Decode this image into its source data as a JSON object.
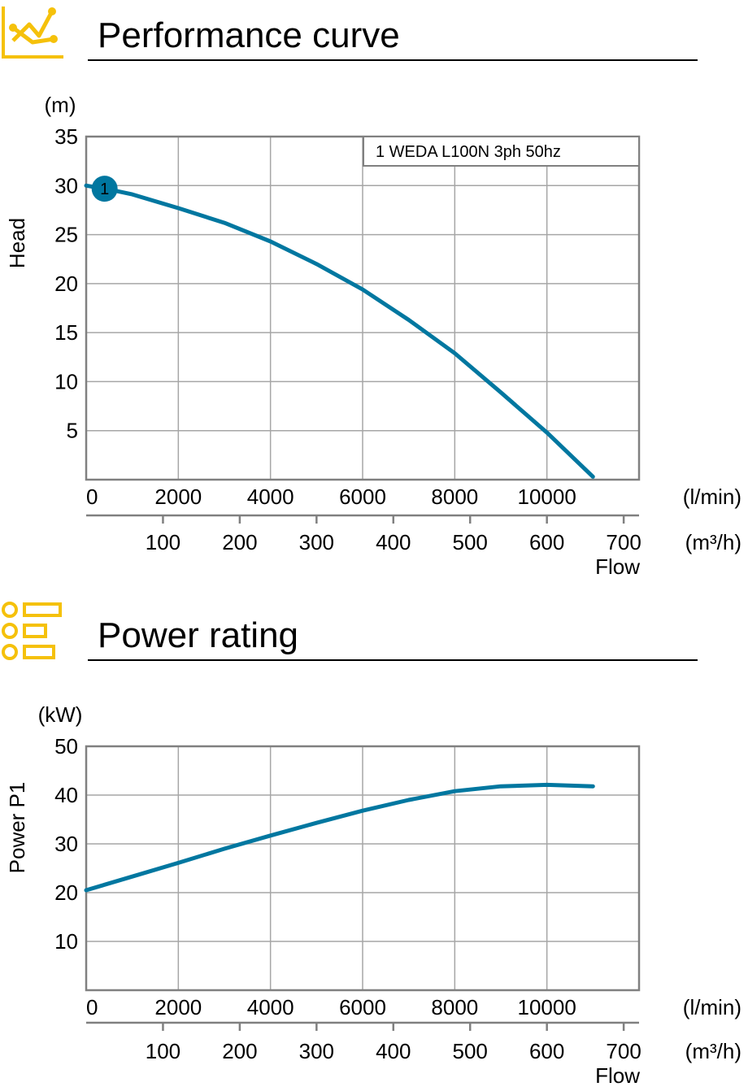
{
  "sections": {
    "performance": {
      "title": "Performance curve",
      "icon": "line-chart-icon"
    },
    "power": {
      "title": "Power rating",
      "icon": "list-icon"
    }
  },
  "colors": {
    "accent": "#F5C10B",
    "curve": "#0077A0",
    "grid": "#A6A6A6",
    "axis": "#808080"
  },
  "chart_data": [
    {
      "type": "line",
      "unit_label": "(m)",
      "ylabel": "Head",
      "xlabel": "Flow",
      "x_unit": "(l/min)",
      "x2_unit": "(m³/h)",
      "xlim": [
        0,
        12000
      ],
      "ylim": [
        0,
        35
      ],
      "y_ticks": [
        5,
        10,
        15,
        20,
        25,
        30,
        35
      ],
      "x_ticks": [
        0,
        2000,
        4000,
        6000,
        8000,
        10000
      ],
      "x2_ticks": [
        100,
        200,
        300,
        400,
        500,
        600,
        700
      ],
      "grid": true,
      "legend": "1 WEDA L100N 3ph 50hz",
      "marker_label": "1",
      "marker_x": 400,
      "series": [
        {
          "name": "1 WEDA L100N 3ph 50hz",
          "x": [
            0,
            500,
            1000,
            2000,
            3000,
            4000,
            5000,
            6000,
            7000,
            8000,
            9000,
            10000,
            11000
          ],
          "y": [
            30.0,
            29.6,
            29.1,
            27.7,
            26.2,
            24.3,
            22.0,
            19.4,
            16.3,
            12.9,
            8.9,
            4.8,
            0.3
          ]
        }
      ]
    },
    {
      "type": "line",
      "unit_label": "(kW)",
      "ylabel": "Power P1",
      "xlabel": "Flow",
      "x_unit": "(l/min)",
      "x2_unit": "(m³/h)",
      "xlim": [
        0,
        12000
      ],
      "ylim": [
        0,
        50
      ],
      "y_ticks": [
        10,
        20,
        30,
        40,
        50
      ],
      "x_ticks": [
        0,
        2000,
        4000,
        6000,
        8000,
        10000
      ],
      "x2_ticks": [
        100,
        200,
        300,
        400,
        500,
        600,
        700
      ],
      "grid": true,
      "series": [
        {
          "name": "",
          "x": [
            0,
            1000,
            2000,
            3000,
            4000,
            5000,
            6000,
            7000,
            8000,
            9000,
            10000,
            11000
          ],
          "y": [
            20.5,
            23.3,
            26.1,
            29.0,
            31.7,
            34.3,
            36.8,
            39.0,
            40.8,
            41.8,
            42.1,
            41.8
          ]
        }
      ]
    }
  ]
}
